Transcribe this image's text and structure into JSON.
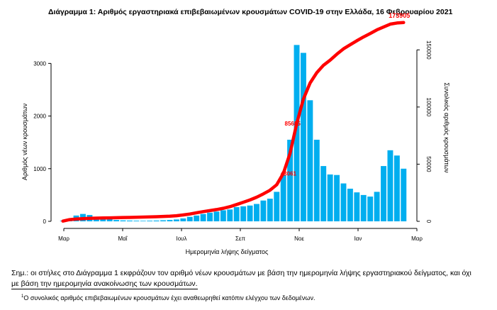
{
  "chart_data": {
    "type": "bar",
    "title": "Διάγραμμα 1: Αριθμός εργαστηριακά επιβεβαιωμένων κρουσμάτων COVID-19 στην Ελλάδα, 16 Φεβρουαρίου 2021",
    "xlabel": "Ημερομηνία λήψης δείγματος",
    "ylabel": "Αριθμός νέων κρουσμάτων",
    "y2label": "Συνολικός αριθμός κρουσμάτων",
    "ylim": [
      0,
      3800
    ],
    "y2lim": [
      0,
      175000
    ],
    "yticks": [
      0,
      1000,
      2000,
      3000
    ],
    "y2ticks": [
      0,
      50000,
      100000,
      150000
    ],
    "xticks": [
      "Μαρ",
      "Μαΐ",
      "Ιουλ",
      "Σεπ",
      "Νοε",
      "Ιαν",
      "Μαρ"
    ],
    "weeks": 52,
    "series": [
      {
        "name": "Νέα κρούσματα",
        "type": "bar",
        "color": "#00aeef",
        "values": [
          12,
          35,
          110,
          140,
          120,
          85,
          60,
          40,
          25,
          18,
          15,
          12,
          10,
          12,
          15,
          20,
          25,
          35,
          55,
          85,
          110,
          140,
          165,
          185,
          210,
          225,
          270,
          285,
          300,
          330,
          395,
          430,
          560,
          880,
          1550,
          3350,
          3200,
          2300,
          1550,
          1050,
          890,
          880,
          720,
          620,
          550,
          500,
          470,
          560,
          1050,
          1350,
          1250,
          1000
        ]
      },
      {
        "name": "Συνολικά κρούσματα",
        "type": "line",
        "axis": "right",
        "color": "#ff0000",
        "values": [
          200,
          1500,
          2000,
          2350,
          2600,
          2800,
          2950,
          3050,
          3200,
          3300,
          3400,
          3550,
          3700,
          3850,
          4050,
          4250,
          4500,
          4900,
          5600,
          6400,
          7500,
          8500,
          9400,
          10300,
          11400,
          12800,
          14700,
          16700,
          18700,
          21100,
          24000,
          27200,
          32000,
          42000,
          59500,
          85600,
          107000,
          121000,
          130000,
          136500,
          141000,
          146200,
          150900,
          154500,
          158000,
          161300,
          164300,
          167500,
          170000,
          172500,
          173500,
          173905
        ]
      }
    ],
    "annotations": [
      {
        "text": "173905",
        "color": "#ff0000"
      },
      {
        "text": "85685",
        "color": "#ff0000"
      },
      {
        "text": "43061",
        "color": "#ff0000"
      }
    ]
  },
  "note": {
    "line1": "Σημ.: οι στήλες στο Διάγραμμα 1 εκφράζουν τον αριθμό νέων κρουσμάτων με βάση την ημερομηνία λήψης εργαστηριακού δείγματος, και όχι",
    "line2": "με βάση την ημερομηνία ανακοίνωσης των κρουσμάτων."
  },
  "footnote": {
    "mark": "1",
    "text": "Ο συνολικός αριθμός επιβεβαιωμένων κρουσμάτων έχει αναθεωρηθεί κατόπιν ελέγχου των δεδομένων."
  }
}
